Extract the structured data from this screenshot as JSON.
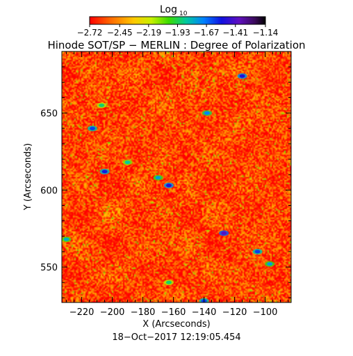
{
  "chart_data": {
    "type": "heatmap",
    "title": "Hinode SOT/SP − MERLIN : Degree of Polarization",
    "xlabel": "X (Arcseconds)",
    "ylabel": "Y (Arcseconds)",
    "timestamp": "18−Oct−2017 12:19:05.454",
    "xlim": [
      -233,
      -83
    ],
    "ylim": [
      527,
      690
    ],
    "x_ticks": [
      -220,
      -200,
      -180,
      -160,
      -140,
      -120,
      -100
    ],
    "x_tick_labels": [
      "−220",
      "−200",
      "−180",
      "−160",
      "−140",
      "−120",
      "−100"
    ],
    "y_ticks": [
      550,
      600,
      650
    ],
    "y_tick_labels": [
      "550",
      "600",
      "650"
    ],
    "colorbar": {
      "label_main": "Log",
      "label_sub": "10",
      "range": [
        -2.72,
        -1.14
      ],
      "ticks": [
        -2.72,
        -2.45,
        -2.19,
        -1.93,
        -1.67,
        -1.41,
        -1.14
      ],
      "tick_labels": [
        "−2.72",
        "−2.45",
        "−2.19",
        "−1.93",
        "−1.67",
        "−1.41",
        "−1.14"
      ],
      "colormap": "rainbow (red to purple to black)"
    },
    "field_description_level": -2.6,
    "high_polarization_patches": [
      {
        "x": -163,
        "y": 603,
        "value": -1.5
      },
      {
        "x": -170,
        "y": 608,
        "value": -1.75
      },
      {
        "x": -138,
        "y": 650,
        "value": -1.7
      },
      {
        "x": -115,
        "y": 674,
        "value": -1.5
      },
      {
        "x": -207,
        "y": 655,
        "value": -1.9
      },
      {
        "x": -213,
        "y": 640,
        "value": -1.6
      },
      {
        "x": -205,
        "y": 612,
        "value": -1.55
      },
      {
        "x": -230,
        "y": 568,
        "value": -1.8
      },
      {
        "x": -127,
        "y": 572,
        "value": -1.4
      },
      {
        "x": -105,
        "y": 560,
        "value": -1.6
      },
      {
        "x": -97,
        "y": 552,
        "value": -1.75
      },
      {
        "x": -163,
        "y": 540,
        "value": -1.9
      },
      {
        "x": -140,
        "y": 528,
        "value": -1.6
      },
      {
        "x": -190,
        "y": 618,
        "value": -1.85
      }
    ]
  }
}
